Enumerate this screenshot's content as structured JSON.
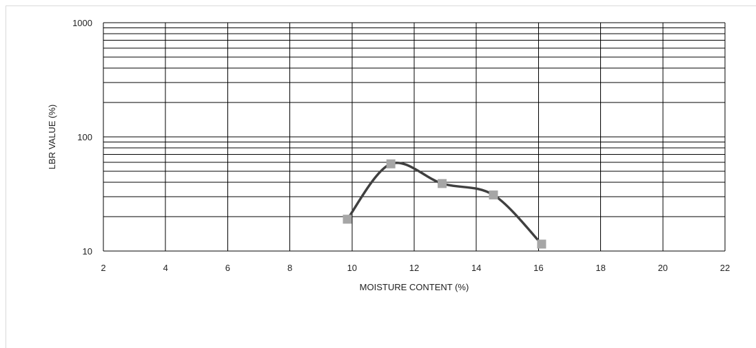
{
  "chart_data": {
    "type": "line",
    "title": "",
    "xlabel": "MOISTURE CONTENT (%)",
    "ylabel": "LBR VALUE (%)",
    "x_scale": "linear",
    "y_scale": "log",
    "xlim": [
      2,
      22
    ],
    "ylim": [
      10,
      1000
    ],
    "x_ticks": [
      2,
      4,
      6,
      8,
      10,
      12,
      14,
      16,
      18,
      20,
      22
    ],
    "y_ticks": [
      10,
      100,
      1000
    ],
    "grid": true,
    "legend": "none",
    "smooth": true,
    "series": [
      {
        "x": [
          9.85,
          11.25,
          12.9,
          14.55,
          16.1
        ],
        "y": [
          19,
          58,
          39,
          31,
          11.5
        ]
      }
    ],
    "colors": {
      "line": "#404040",
      "marker": "#a6a6a6",
      "grid": "#000000",
      "text": "#222222"
    }
  }
}
